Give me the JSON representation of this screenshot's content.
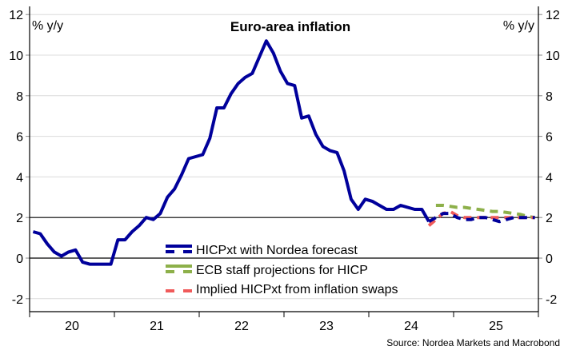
{
  "chart_data": {
    "type": "line",
    "title": "Euro-area inflation",
    "ylabel_left": "% y/y",
    "ylabel_right": "% y/y",
    "source": "Source: Nordea Markets and Macrobond",
    "ylim": [
      -2.5,
      12.5
    ],
    "yticks": [
      -2,
      0,
      2,
      4,
      6,
      8,
      10,
      12
    ],
    "xticks": [
      "20",
      "21",
      "22",
      "23",
      "24",
      "25"
    ],
    "x_start": "2020-01",
    "x_end": "2025-12",
    "grid": true,
    "reference_lines": [
      0,
      2
    ],
    "legend_position": "bottom-center",
    "series": [
      {
        "name": "HICPxt with Nordea forecast",
        "color": "#00009b",
        "start": "2020-01",
        "actual_values": [
          1.3,
          1.2,
          0.7,
          0.3,
          0.1,
          0.3,
          0.4,
          -0.2,
          -0.3,
          -0.3,
          -0.3,
          -0.3,
          0.9,
          0.9,
          1.3,
          1.6,
          2.0,
          1.9,
          2.2,
          3.0,
          3.4,
          4.1,
          4.9,
          5.0,
          5.1,
          5.9,
          7.4,
          7.4,
          8.1,
          8.6,
          8.9,
          9.1,
          9.9,
          10.7,
          10.1,
          9.2,
          8.6,
          8.5,
          6.9,
          7.0,
          6.1,
          5.5,
          5.3,
          5.2,
          4.3,
          2.9,
          2.4,
          2.9,
          2.8,
          2.6,
          2.4,
          2.4,
          2.6,
          2.5,
          2.4,
          2.4,
          1.8
        ],
        "forecast_start": "2024-09",
        "forecast_values": [
          1.8,
          2.0,
          2.2,
          2.2,
          2.0,
          1.9,
          1.9,
          2.0,
          2.0,
          1.9,
          1.8,
          1.9,
          2.0,
          2.0,
          2.0,
          2.0
        ]
      },
      {
        "name": "ECB staff projections for HICP",
        "color": "#8db04a",
        "start": "2024-10",
        "values": [
          2.6,
          2.6,
          2.55,
          2.5,
          2.5,
          2.45,
          2.4,
          2.35,
          2.3,
          2.3,
          2.25,
          2.2,
          2.15,
          2.05,
          2.0
        ]
      },
      {
        "name": "Implied HICPxt from inflation swaps",
        "color": "#f05a5a",
        "start": "2024-09",
        "values": [
          1.6,
          1.9,
          2.2,
          2.3,
          2.1,
          2.0,
          2.0,
          2.0,
          2.0,
          2.0,
          2.0,
          2.0,
          2.0,
          2.0,
          2.0,
          2.0
        ]
      }
    ]
  }
}
